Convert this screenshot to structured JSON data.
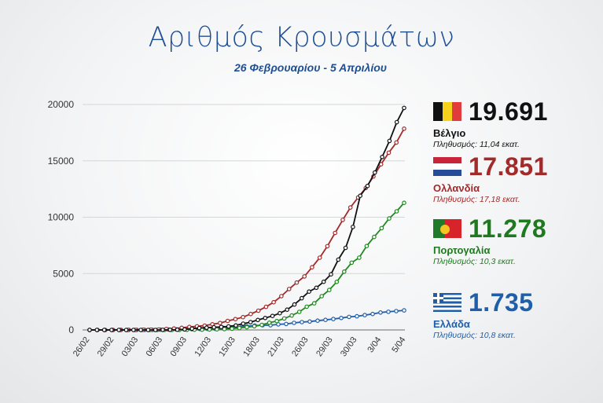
{
  "header": {
    "title": "Αριθμός Κρουσμάτων",
    "subtitle": "26 Φεβρουαρίου - 5 Απριλίου"
  },
  "countries": [
    {
      "flag": "belgium-flag-icon",
      "value_label": "19.691",
      "name": "Βέλγιο",
      "population": "Πληθυσμός: 11,04 εκατ.",
      "color": "#111111",
      "text_color": "#111111",
      "pop_color": "#111111"
    },
    {
      "flag": "netherlands-flag-icon",
      "value_label": "17.851",
      "name": "Ολλανδία",
      "population": "Πληθυσμός: 17,18 εκατ.",
      "color": "#a32a2a",
      "text_color": "#a32a2a",
      "pop_color": "#a32a2a"
    },
    {
      "flag": "portugal-flag-icon",
      "value_label": "11.278",
      "name": "Πορτογαλία",
      "population": "Πληθυσμός: 10,3 εκατ.",
      "color": "#1f8a1f",
      "text_color": "#1f7a1f",
      "pop_color": "#1f7a1f"
    },
    {
      "flag": "greece-flag-icon",
      "value_label": "1.735",
      "name": "Ελλάδα",
      "population": "Πληθυσμός: 10,8 εκατ.",
      "color": "#1f5ea8",
      "text_color": "#1f5ea8",
      "pop_color": "#1f5ea8"
    }
  ],
  "chart_data": {
    "type": "line",
    "title": "Αριθμός Κρουσμάτων",
    "xlabel": "",
    "ylabel": "",
    "ylim": [
      0,
      20000
    ],
    "yticks": [
      0,
      5000,
      10000,
      15000,
      20000
    ],
    "x_tick_labels": [
      "26/02",
      "29/02",
      "03/03",
      "06/03",
      "09/03",
      "12/03",
      "15/03",
      "18/03",
      "21/03",
      "26/03",
      "29/03",
      "30/03",
      "3/04",
      "5/04"
    ],
    "grid": "horizontal",
    "legend": "none",
    "series": [
      {
        "name": "Βέλγιο",
        "color": "#111111",
        "values": [
          0,
          0,
          0,
          0,
          0,
          0,
          0,
          0,
          1,
          2,
          8,
          13,
          23,
          50,
          109,
          169,
          200,
          239,
          267,
          314,
          399,
          559,
          689,
          886,
          1058,
          1243,
          1486,
          1795,
          2257,
          2815,
          3401,
          3743,
          4269,
          4937,
          6235,
          7284,
          9134,
          11899,
          12775,
          13964,
          15348,
          16770,
          18431,
          19691
        ]
      },
      {
        "name": "Ολλανδία",
        "color": "#a32a2a",
        "values": [
          0,
          0,
          1,
          1,
          2,
          7,
          10,
          18,
          24,
          38,
          82,
          128,
          188,
          265,
          321,
          382,
          503,
          614,
          804,
          959,
          1135,
          1413,
          1705,
          2051,
          2460,
          2994,
          3631,
          4204,
          4749,
          5560,
          6412,
          7431,
          8603,
          9762,
          10866,
          11750,
          12595,
          13614,
          14697,
          15723,
          16627,
          17851
        ]
      },
      {
        "name": "Πορτογαλία",
        "color": "#1f8a1f",
        "values": [
          0,
          0,
          0,
          0,
          0,
          0,
          0,
          0,
          0,
          2,
          4,
          5,
          8,
          13,
          20,
          30,
          41,
          59,
          78,
          112,
          169,
          245,
          331,
          448,
          642,
          785,
          1020,
          1280,
          1600,
          2060,
          2362,
          2995,
          3544,
          4268,
          5170,
          5962,
          6408,
          7443,
          8251,
          9034,
          9886,
          10524,
          11278
        ]
      },
      {
        "name": "Ελλάδα",
        "color": "#1f5ea8",
        "values": [
          0,
          0,
          1,
          3,
          4,
          7,
          7,
          7,
          9,
          31,
          45,
          46,
          73,
          73,
          89,
          99,
          99,
          190,
          228,
          331,
          331,
          387,
          418,
          418,
          495,
          530,
          624,
          695,
          743,
          821,
          892,
          966,
          1061,
          1156,
          1212,
          1314,
          1415,
          1544,
          1613,
          1673,
          1735
        ]
      }
    ]
  }
}
